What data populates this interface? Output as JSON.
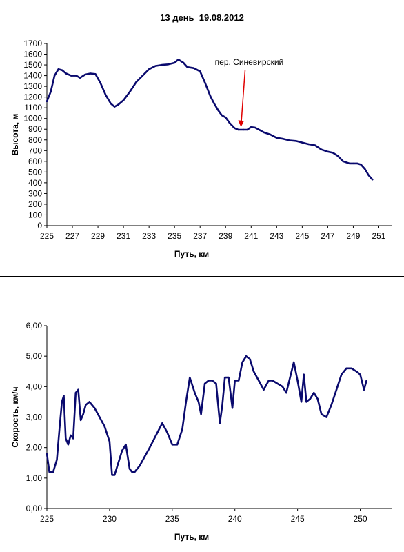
{
  "page_title": "13 день  19.08.2012",
  "chart_data": [
    {
      "type": "line",
      "title": "13 день  19.08.2012",
      "xlabel": "Путь, км",
      "ylabel": "Высота, м",
      "xlim": [
        225,
        252
      ],
      "ylim": [
        0,
        1700
      ],
      "xticks": [
        225,
        227,
        229,
        231,
        233,
        235,
        237,
        239,
        241,
        243,
        245,
        247,
        249,
        251
      ],
      "yticks": [
        0,
        100,
        200,
        300,
        400,
        500,
        600,
        700,
        800,
        900,
        1000,
        1100,
        1200,
        1300,
        1400,
        1500,
        1600,
        1700
      ],
      "grid": false,
      "line_color": "#0a0a6e",
      "annotation": {
        "text": "пер. Синевирский",
        "x": 240.2,
        "y": 900,
        "arrow_color": "#e00000"
      },
      "series": [
        {
          "x": [
            225.0,
            225.3,
            225.6,
            225.9,
            226.2,
            226.5,
            226.9,
            227.3,
            227.6,
            228.0,
            228.4,
            228.8,
            229.2,
            229.6,
            230.0,
            230.3,
            230.6,
            231.0,
            231.5,
            232.0,
            232.5,
            233.0,
            233.5,
            234.0,
            234.5,
            235.0,
            235.3,
            235.7,
            236.0,
            236.5,
            237.0,
            237.4,
            237.8,
            238.1,
            238.4,
            238.7,
            239.0,
            239.3,
            239.7,
            240.0,
            240.4,
            240.7,
            241.0,
            241.3,
            241.7,
            242.0,
            242.5,
            243.0,
            243.5,
            244.0,
            244.5,
            245.0,
            245.5,
            246.0,
            246.5,
            247.0,
            247.4,
            247.8,
            248.2,
            248.7,
            249.0,
            249.3,
            249.6,
            249.9,
            250.2,
            250.5
          ],
          "y": [
            1160,
            1250,
            1400,
            1460,
            1450,
            1420,
            1400,
            1400,
            1380,
            1410,
            1420,
            1415,
            1330,
            1220,
            1140,
            1110,
            1130,
            1170,
            1250,
            1340,
            1400,
            1460,
            1490,
            1500,
            1505,
            1520,
            1550,
            1520,
            1480,
            1470,
            1440,
            1330,
            1210,
            1140,
            1080,
            1030,
            1010,
            960,
            910,
            895,
            895,
            895,
            920,
            915,
            890,
            870,
            850,
            820,
            810,
            795,
            790,
            775,
            760,
            750,
            710,
            690,
            680,
            650,
            600,
            580,
            580,
            580,
            570,
            530,
            470,
            430
          ]
        }
      ]
    },
    {
      "type": "line",
      "xlabel": "Путь, км",
      "ylabel": "Скорость, км/ч",
      "xlim": [
        225,
        252.5
      ],
      "ylim": [
        0,
        6
      ],
      "xticks": [
        225,
        230,
        235,
        240,
        245,
        250
      ],
      "yticks": [
        "0,00",
        "1,00",
        "2,00",
        "3,00",
        "4,00",
        "5,00",
        "6,00"
      ],
      "ytick_values": [
        0,
        1,
        2,
        3,
        4,
        5,
        6
      ],
      "grid": false,
      "line_color": "#0a0a6e",
      "series": [
        {
          "x": [
            225.0,
            225.2,
            225.5,
            225.8,
            226.0,
            226.2,
            226.35,
            226.5,
            226.7,
            226.9,
            227.1,
            227.3,
            227.5,
            227.7,
            227.9,
            228.1,
            228.4,
            228.8,
            229.2,
            229.6,
            230.0,
            230.2,
            230.4,
            230.7,
            231.0,
            231.3,
            231.6,
            231.8,
            232.0,
            232.4,
            232.8,
            233.2,
            233.7,
            234.2,
            234.6,
            235.0,
            235.4,
            235.8,
            236.1,
            236.4,
            236.8,
            237.1,
            237.3,
            237.6,
            237.9,
            238.2,
            238.5,
            238.8,
            239.0,
            239.2,
            239.5,
            239.8,
            240.0,
            240.3,
            240.6,
            240.9,
            241.2,
            241.5,
            241.9,
            242.3,
            242.7,
            243.0,
            243.4,
            243.8,
            244.1,
            244.4,
            244.7,
            245.0,
            245.3,
            245.5,
            245.7,
            246.0,
            246.3,
            246.6,
            246.9,
            247.3,
            247.7,
            248.1,
            248.5,
            248.9,
            249.3,
            249.7,
            250.0,
            250.3,
            250.5
          ],
          "y": [
            1.8,
            1.2,
            1.2,
            1.6,
            2.6,
            3.5,
            3.7,
            2.3,
            2.1,
            2.4,
            2.3,
            3.8,
            3.9,
            2.9,
            3.1,
            3.4,
            3.5,
            3.3,
            3.0,
            2.7,
            2.2,
            1.1,
            1.1,
            1.5,
            1.9,
            2.1,
            1.3,
            1.2,
            1.2,
            1.4,
            1.7,
            2.0,
            2.4,
            2.8,
            2.5,
            2.1,
            2.1,
            2.6,
            3.5,
            4.3,
            3.8,
            3.5,
            3.1,
            4.1,
            4.2,
            4.2,
            4.1,
            2.8,
            3.4,
            4.3,
            4.3,
            3.3,
            4.2,
            4.2,
            4.8,
            5.0,
            4.9,
            4.5,
            4.2,
            3.9,
            4.2,
            4.2,
            4.1,
            4.0,
            3.8,
            4.3,
            4.8,
            4.2,
            3.5,
            4.4,
            3.5,
            3.6,
            3.8,
            3.6,
            3.1,
            3.0,
            3.4,
            3.9,
            4.4,
            4.6,
            4.6,
            4.5,
            4.4,
            3.9,
            4.2
          ]
        }
      ]
    }
  ]
}
